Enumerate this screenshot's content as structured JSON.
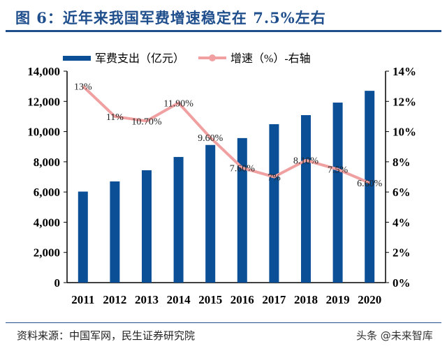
{
  "title": "图 6：近年来我国军费增速稳定在 7.5%左右",
  "source": "资料来源：中国军网，民生证券研究院",
  "watermark": "头条 @未来智库",
  "colors": {
    "bar": "#0b4f96",
    "line": "#f0a0a0",
    "title": "#1f4e8c"
  },
  "chart_data": {
    "type": "bar+line",
    "categories": [
      "2011",
      "2012",
      "2013",
      "2014",
      "2015",
      "2016",
      "2017",
      "2018",
      "2019",
      "2020"
    ],
    "series": [
      {
        "name": "军费支出（亿元）",
        "type": "bar",
        "axis": "left",
        "values": [
          6028,
          6700,
          7440,
          8320,
          9114,
          9570,
          10490,
          11090,
          11920,
          12700
        ]
      },
      {
        "name": "增速（%）-右轴",
        "type": "line",
        "axis": "right",
        "values": [
          13,
          11,
          10.7,
          11.9,
          9.6,
          7.6,
          7,
          8.1,
          7.5,
          6.6
        ],
        "labels": [
          "13%",
          "11%",
          "10.70%",
          "11.90%",
          "9.60%",
          "7.60%",
          "7%",
          "8.10%",
          "7.5%",
          "6.60%"
        ]
      }
    ],
    "left_axis": {
      "ylim": [
        0,
        14000
      ],
      "ticks": [
        "0",
        "2,000",
        "4,000",
        "6,000",
        "8,000",
        "10,000",
        "12,000",
        "14,000"
      ]
    },
    "right_axis": {
      "ylim": [
        0,
        14
      ],
      "ticks": [
        "0%",
        "2%",
        "4%",
        "6%",
        "8%",
        "10%",
        "12%",
        "14%"
      ]
    },
    "legend": "top",
    "grid": false
  }
}
